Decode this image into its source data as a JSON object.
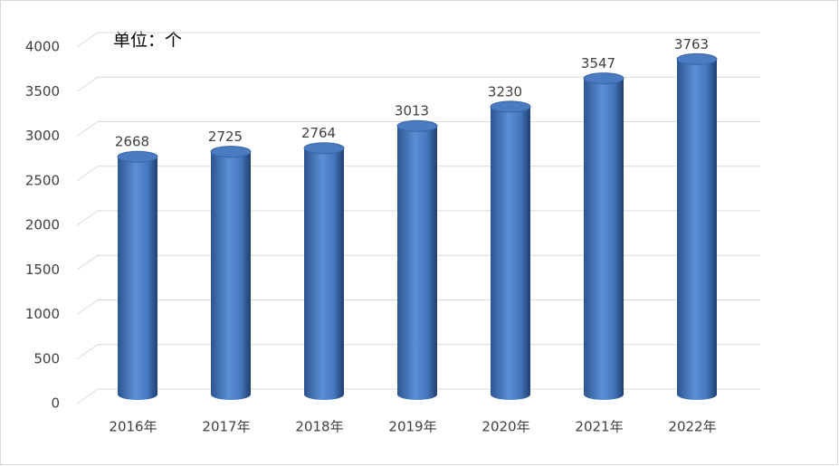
{
  "chart_data": {
    "type": "bar",
    "annotation": "单位：个",
    "categories": [
      "2016年",
      "2017年",
      "2018年",
      "2019年",
      "2020年",
      "2021年",
      "2022年"
    ],
    "values": [
      2668,
      2725,
      2764,
      3013,
      3230,
      3547,
      3763
    ],
    "color": "#4f81bd",
    "ylim": [
      0,
      4000
    ],
    "yticks": [
      0,
      500,
      1000,
      1500,
      2000,
      2500,
      3000,
      3500,
      4000
    ],
    "grid": true
  }
}
